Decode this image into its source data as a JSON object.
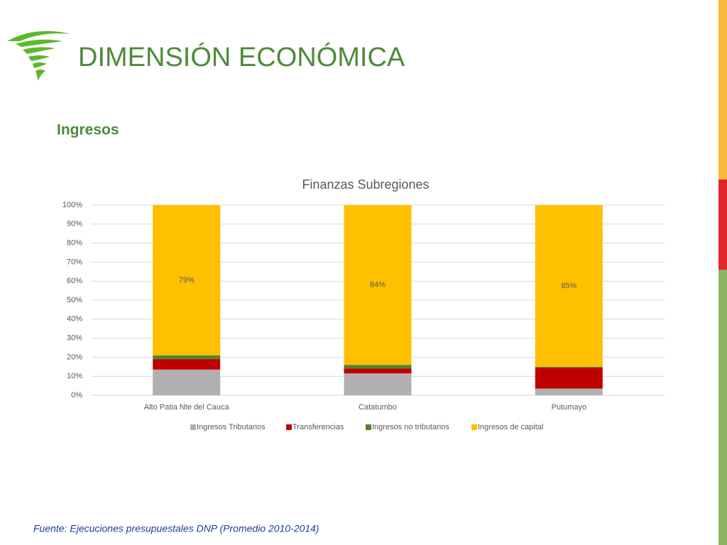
{
  "slide": {
    "title": "DIMENSIÓN ECONÓMICA",
    "section": "Ingresos",
    "source": "Fuente: Ejecuciones presupuestales DNP (Promedio 2010-2014)"
  },
  "chart_data": {
    "type": "stacked_bar",
    "title": "Finanzas Subregiones",
    "categories": [
      "Alto Patia Nte del Cauca",
      "Catatumbo",
      "Putumayo"
    ],
    "series": [
      {
        "name": "Ingresos Tributarios",
        "color": "#b0b0b0",
        "values": [
          13.5,
          11.5,
          3.5
        ]
      },
      {
        "name": "Transferencias",
        "color": "#c00000",
        "values": [
          5.5,
          2.5,
          11
        ]
      },
      {
        "name": "Ingresos no tributarios",
        "color": "#548235",
        "values": [
          2,
          2,
          0.5
        ]
      },
      {
        "name": "Ingresos de capital",
        "color": "#ffc000",
        "values": [
          79,
          84,
          85
        ],
        "value_labels": [
          "79%",
          "84%",
          "85%"
        ]
      }
    ],
    "ylim": [
      0,
      100
    ],
    "yticks": [
      {
        "value": 0,
        "label": "0%"
      },
      {
        "value": 10,
        "label": "10%"
      },
      {
        "value": 20,
        "label": "20%"
      },
      {
        "value": 30,
        "label": "30%"
      },
      {
        "value": 40,
        "label": "40%"
      },
      {
        "value": 50,
        "label": "50%"
      },
      {
        "value": 60,
        "label": "60%"
      },
      {
        "value": 70,
        "label": "70%"
      },
      {
        "value": 80,
        "label": "80%"
      },
      {
        "value": 90,
        "label": "90%"
      },
      {
        "value": 100,
        "label": "100%"
      }
    ],
    "grid": true,
    "legend": "bottom"
  }
}
